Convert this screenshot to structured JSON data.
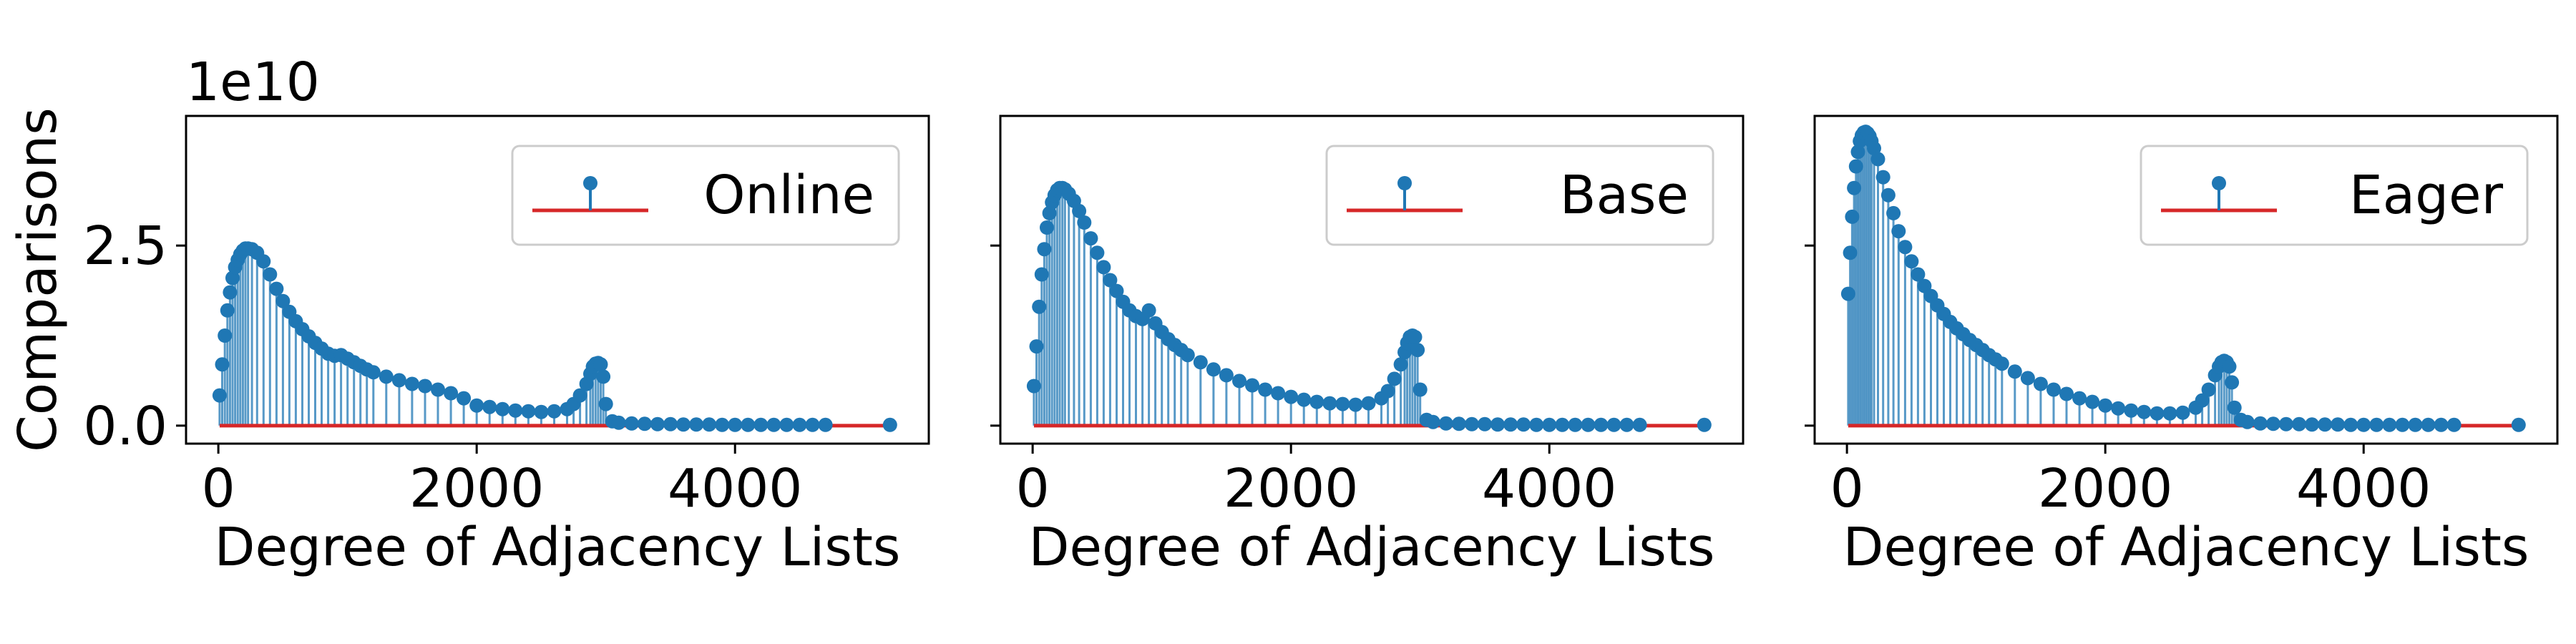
{
  "chart_data": [
    {
      "type": "stem",
      "title": "",
      "xlabel": "Degree of Adjacency Lists",
      "ylabel": "Comparisons",
      "y_offset_label": "1e10",
      "xlim": [
        -250,
        5500
      ],
      "ylim": [
        -0.25,
        4.3
      ],
      "xticks": [
        0,
        2000,
        4000
      ],
      "xtick_labels": [
        "0",
        "2000",
        "4000"
      ],
      "yticks": [
        0.0,
        2.5
      ],
      "ytick_labels": [
        "0.0",
        "2.5"
      ],
      "show_ytick_labels": true,
      "grid": false,
      "legend": {
        "position": "upper-right",
        "entries": [
          "Online"
        ]
      },
      "series": [
        {
          "name": "Online",
          "marker_color": "#1f77b4",
          "baseline_color": "#d62728",
          "baseline": 0,
          "x": [
            10,
            30,
            50,
            70,
            90,
            110,
            130,
            150,
            170,
            190,
            210,
            230,
            260,
            300,
            350,
            400,
            450,
            500,
            550,
            600,
            650,
            700,
            750,
            800,
            850,
            900,
            950,
            1000,
            1050,
            1100,
            1150,
            1200,
            1300,
            1400,
            1500,
            1600,
            1700,
            1800,
            1900,
            2000,
            2100,
            2200,
            2300,
            2400,
            2500,
            2600,
            2700,
            2750,
            2800,
            2850,
            2880,
            2900,
            2920,
            2940,
            2960,
            2980,
            3000,
            3050,
            3100,
            3200,
            3300,
            3400,
            3500,
            3600,
            3700,
            3800,
            3900,
            4000,
            4100,
            4200,
            4300,
            4400,
            4500,
            4600,
            4700,
            5200
          ],
          "y": [
            0.42,
            0.85,
            1.25,
            1.6,
            1.85,
            2.05,
            2.2,
            2.3,
            2.38,
            2.43,
            2.46,
            2.46,
            2.45,
            2.4,
            2.28,
            2.1,
            1.9,
            1.73,
            1.58,
            1.45,
            1.34,
            1.24,
            1.15,
            1.07,
            1.0,
            0.97,
            0.98,
            0.93,
            0.88,
            0.83,
            0.78,
            0.74,
            0.68,
            0.63,
            0.58,
            0.55,
            0.5,
            0.45,
            0.38,
            0.28,
            0.26,
            0.23,
            0.21,
            0.2,
            0.19,
            0.2,
            0.23,
            0.3,
            0.42,
            0.58,
            0.72,
            0.82,
            0.86,
            0.87,
            0.85,
            0.68,
            0.3,
            0.06,
            0.04,
            0.03,
            0.025,
            0.02,
            0.02,
            0.015,
            0.015,
            0.015,
            0.01,
            0.01,
            0.01,
            0.01,
            0.01,
            0.01,
            0.01,
            0.01,
            0.01,
            0.01
          ]
        }
      ]
    },
    {
      "type": "stem",
      "title": "",
      "xlabel": "Degree of Adjacency Lists",
      "ylabel": "",
      "xlim": [
        -250,
        5500
      ],
      "ylim": [
        -0.25,
        4.3
      ],
      "xticks": [
        0,
        2000,
        4000
      ],
      "xtick_labels": [
        "0",
        "2000",
        "4000"
      ],
      "yticks": [
        0.0,
        2.5
      ],
      "show_ytick_labels": false,
      "grid": false,
      "legend": {
        "position": "upper-right",
        "entries": [
          "Base"
        ]
      },
      "series": [
        {
          "name": "Base",
          "marker_color": "#1f77b4",
          "baseline_color": "#d62728",
          "baseline": 0,
          "x": [
            10,
            30,
            50,
            70,
            90,
            110,
            130,
            150,
            170,
            190,
            210,
            230,
            250,
            280,
            320,
            360,
            400,
            450,
            500,
            550,
            600,
            650,
            700,
            750,
            800,
            850,
            900,
            950,
            1000,
            1050,
            1100,
            1150,
            1200,
            1300,
            1400,
            1500,
            1600,
            1700,
            1800,
            1900,
            2000,
            2100,
            2200,
            2300,
            2400,
            2500,
            2600,
            2700,
            2750,
            2800,
            2850,
            2880,
            2900,
            2920,
            2940,
            2960,
            2980,
            3000,
            3050,
            3100,
            3200,
            3300,
            3400,
            3500,
            3600,
            3700,
            3800,
            3900,
            4000,
            4100,
            4200,
            4300,
            4400,
            4500,
            4600,
            4700,
            5200
          ],
          "y": [
            0.55,
            1.1,
            1.65,
            2.1,
            2.45,
            2.75,
            2.95,
            3.1,
            3.2,
            3.27,
            3.3,
            3.3,
            3.28,
            3.22,
            3.12,
            2.98,
            2.82,
            2.6,
            2.4,
            2.2,
            2.02,
            1.87,
            1.72,
            1.6,
            1.52,
            1.48,
            1.6,
            1.42,
            1.3,
            1.2,
            1.12,
            1.05,
            0.98,
            0.88,
            0.78,
            0.7,
            0.62,
            0.56,
            0.5,
            0.45,
            0.4,
            0.36,
            0.33,
            0.31,
            0.3,
            0.29,
            0.31,
            0.38,
            0.48,
            0.65,
            0.85,
            1.02,
            1.15,
            1.23,
            1.25,
            1.23,
            1.05,
            0.5,
            0.08,
            0.05,
            0.03,
            0.025,
            0.02,
            0.02,
            0.015,
            0.015,
            0.015,
            0.01,
            0.01,
            0.01,
            0.01,
            0.01,
            0.01,
            0.01,
            0.01,
            0.01,
            0.01
          ]
        }
      ]
    },
    {
      "type": "stem",
      "title": "",
      "xlabel": "Degree of Adjacency Lists",
      "ylabel": "",
      "xlim": [
        -250,
        5500
      ],
      "ylim": [
        -0.25,
        4.3
      ],
      "xticks": [
        0,
        2000,
        4000
      ],
      "xtick_labels": [
        "0",
        "2000",
        "4000"
      ],
      "yticks": [
        0.0,
        2.5
      ],
      "show_ytick_labels": false,
      "grid": false,
      "legend": {
        "position": "upper-right",
        "entries": [
          "Eager"
        ]
      },
      "series": [
        {
          "name": "Eager",
          "marker_color": "#1f77b4",
          "baseline_color": "#d62728",
          "baseline": 0,
          "x": [
            10,
            25,
            40,
            55,
            70,
            85,
            100,
            115,
            130,
            145,
            160,
            175,
            190,
            210,
            240,
            280,
            320,
            360,
            400,
            450,
            500,
            550,
            600,
            650,
            700,
            750,
            800,
            850,
            900,
            950,
            1000,
            1050,
            1100,
            1150,
            1200,
            1300,
            1400,
            1500,
            1600,
            1700,
            1800,
            1900,
            2000,
            2100,
            2200,
            2300,
            2400,
            2500,
            2600,
            2700,
            2750,
            2800,
            2850,
            2880,
            2900,
            2920,
            2940,
            2960,
            2980,
            3000,
            3050,
            3100,
            3200,
            3300,
            3400,
            3500,
            3600,
            3700,
            3800,
            3900,
            4000,
            4100,
            4200,
            4300,
            4400,
            4500,
            4600,
            4700,
            5200
          ],
          "y": [
            1.83,
            2.4,
            2.9,
            3.3,
            3.6,
            3.8,
            3.95,
            4.03,
            4.07,
            4.08,
            4.06,
            4.02,
            3.95,
            3.85,
            3.7,
            3.45,
            3.2,
            2.95,
            2.7,
            2.48,
            2.28,
            2.1,
            1.94,
            1.8,
            1.67,
            1.55,
            1.44,
            1.35,
            1.27,
            1.19,
            1.12,
            1.05,
            0.98,
            0.92,
            0.86,
            0.75,
            0.66,
            0.58,
            0.5,
            0.44,
            0.38,
            0.33,
            0.28,
            0.24,
            0.21,
            0.19,
            0.17,
            0.17,
            0.18,
            0.25,
            0.35,
            0.5,
            0.7,
            0.82,
            0.88,
            0.9,
            0.88,
            0.82,
            0.6,
            0.25,
            0.08,
            0.05,
            0.03,
            0.025,
            0.02,
            0.02,
            0.015,
            0.015,
            0.015,
            0.01,
            0.01,
            0.01,
            0.01,
            0.01,
            0.01,
            0.01,
            0.01,
            0.01,
            0.01
          ]
        }
      ]
    }
  ]
}
